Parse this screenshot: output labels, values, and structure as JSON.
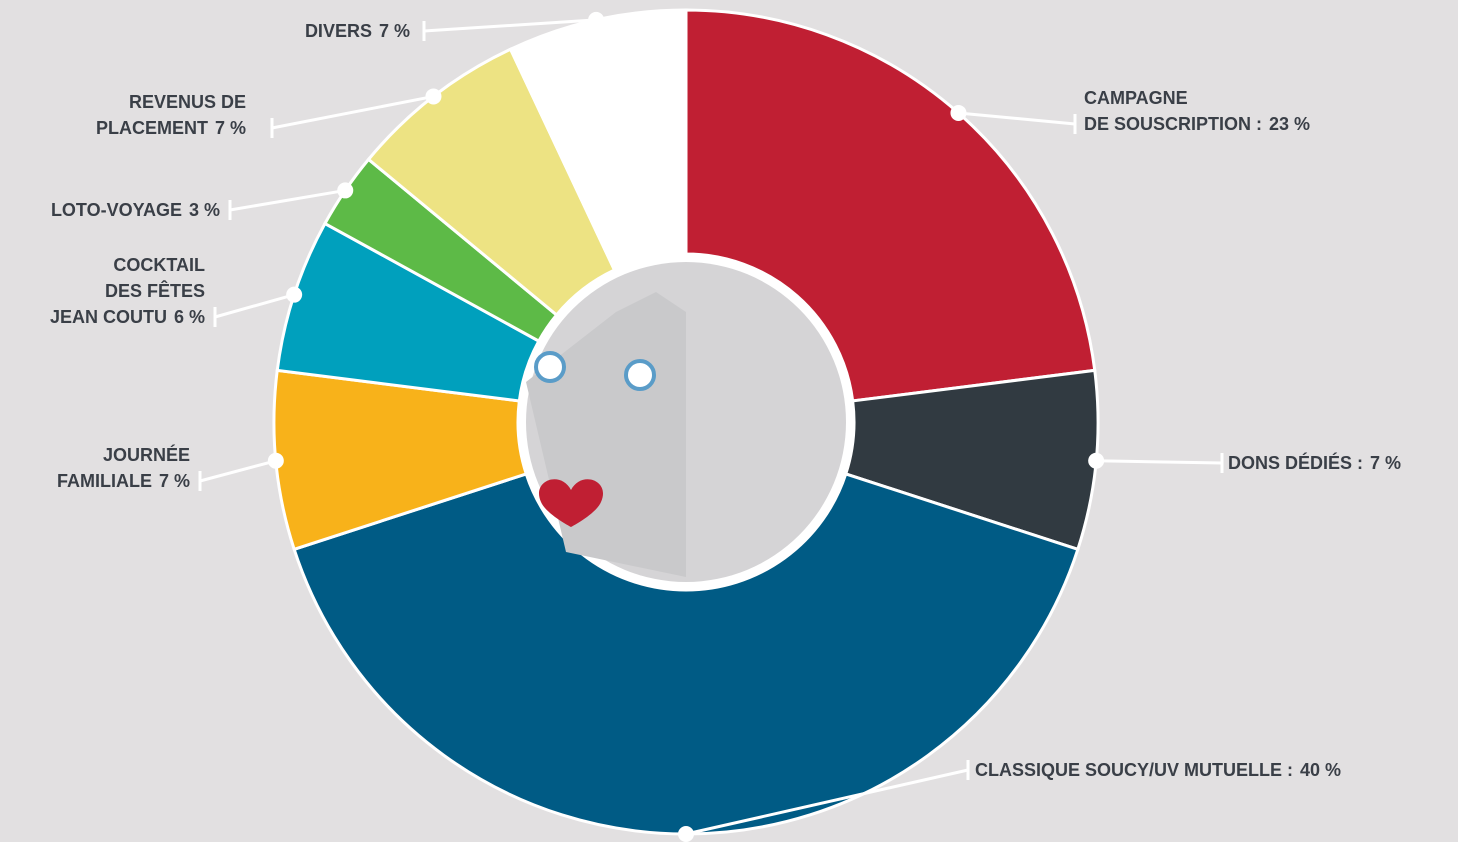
{
  "chart_data": {
    "type": "donut",
    "categories": [
      [
        "CAMPAGNE",
        "DE SOUSCRIPTION :"
      ],
      [
        "DONS DÉDIÉS :"
      ],
      [
        "CLASSIQUE SOUCY/UV MUTUELLE :"
      ],
      [
        "JOURNÉE",
        "FAMILIALE"
      ],
      [
        "COCKTAIL",
        "DES FÊTES",
        "JEAN COUTU"
      ],
      [
        "LOTO-VOYAGE"
      ],
      [
        "REVENUS DE",
        "PLACEMENT"
      ],
      [
        "DIVERS"
      ]
    ],
    "values": [
      23,
      7,
      40,
      7,
      6,
      3,
      7,
      7
    ],
    "value_labels": [
      "23 %",
      "7 %",
      "40 %",
      "7 %",
      "6 %",
      "3 %",
      "7 %",
      "7 %"
    ],
    "colors": [
      "#c01f33",
      "#313a41",
      "#005b85",
      "#f8b21a",
      "#00a0bd",
      "#5dba47",
      "#ede383",
      "#ffffff"
    ]
  }
}
